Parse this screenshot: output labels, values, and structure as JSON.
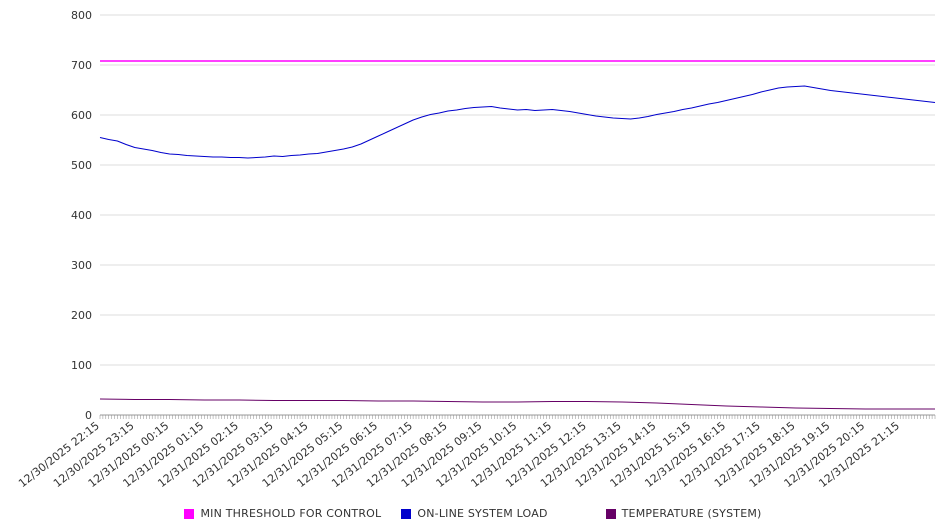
{
  "chart_data": {
    "type": "line",
    "title": "",
    "xlabel": "",
    "ylabel": "",
    "ylim": [
      0,
      800
    ],
    "y_ticks": [
      0,
      100,
      200,
      300,
      400,
      500,
      600,
      700,
      800
    ],
    "grid": true,
    "legend_position": "bottom",
    "x_labels": [
      "12/30/2025 22:15",
      "12/30/2025 23:15",
      "12/31/2025 00:15",
      "12/31/2025 01:15",
      "12/31/2025 02:15",
      "12/31/2025 03:15",
      "12/31/2025 04:15",
      "12/31/2025 05:15",
      "12/31/2025 06:15",
      "12/31/2025 07:15",
      "12/31/2025 08:15",
      "12/31/2025 09:15",
      "12/31/2025 10:15",
      "12/31/2025 11:15",
      "12/31/2025 12:15",
      "12/31/2025 13:15",
      "12/31/2025 14:15",
      "12/31/2025 15:15",
      "12/31/2025 16:15",
      "12/31/2025 17:15",
      "12/31/2025 18:15",
      "12/31/2025 19:15",
      "12/31/2025 20:15",
      "12/31/2025 21:15"
    ],
    "series": [
      {
        "name": "MIN THRESHOLD FOR CONTROL",
        "color": "#ff00ff",
        "stroke_width": 1.6,
        "values": [
          708,
          708
        ]
      },
      {
        "name": "ON-LINE SYSTEM LOAD",
        "color": "#0000cc",
        "stroke_width": 1,
        "values": [
          555,
          551,
          548,
          541,
          535,
          532,
          529,
          525,
          522,
          521,
          519,
          518,
          517,
          516,
          516,
          515,
          515,
          514,
          515,
          516,
          518,
          517,
          519,
          520,
          522,
          523,
          526,
          529,
          532,
          536,
          542,
          550,
          558,
          566,
          574,
          582,
          590,
          596,
          601,
          604,
          608,
          610,
          613,
          615,
          616,
          617,
          614,
          612,
          610,
          611,
          609,
          610,
          611,
          609,
          607,
          604,
          601,
          598,
          596,
          594,
          593,
          592,
          594,
          597,
          601,
          604,
          607,
          611,
          614,
          618,
          622,
          625,
          629,
          633,
          637,
          641,
          646,
          650,
          654,
          656,
          657,
          658,
          655,
          652,
          649,
          647,
          645,
          643,
          641,
          639,
          637,
          635,
          633,
          631,
          629,
          627,
          625
        ]
      },
      {
        "name": "TEMPERATURE (SYSTEM)",
        "color": "#660066",
        "stroke_width": 1,
        "values": [
          32,
          31,
          31,
          30,
          30,
          29,
          29,
          29,
          28,
          28,
          27,
          26,
          26,
          27,
          27,
          26,
          24,
          21,
          18,
          16,
          14,
          13,
          12,
          12,
          12
        ]
      }
    ],
    "colors": {
      "grid": "#dddddd",
      "axis": "#999999",
      "tick": "#888888",
      "text": "#333333",
      "background": "#ffffff"
    }
  }
}
